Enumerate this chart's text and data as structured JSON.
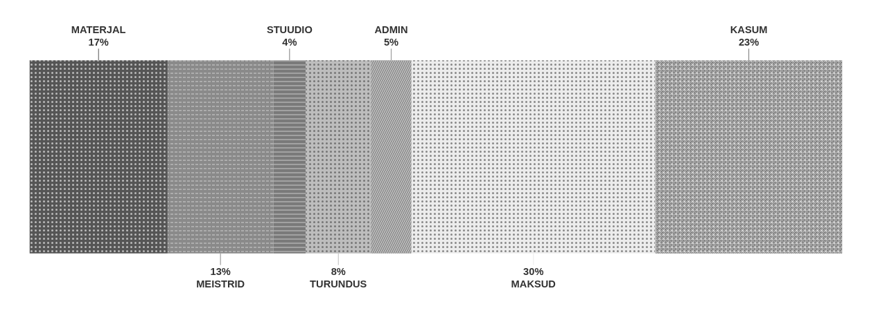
{
  "chart_data": {
    "type": "bar",
    "orientation": "horizontal",
    "stacked": true,
    "categories": [
      null
    ],
    "tick_labels": false,
    "xlim": [
      0,
      100
    ],
    "series": [
      {
        "name": "MATERJAL",
        "color": "#555555",
        "values": [
          17
        ],
        "value_labels": [
          "17%"
        ]
      },
      {
        "name": "MEISTRID",
        "color": "#8a8a8a",
        "values": [
          13
        ],
        "value_labels": [
          "13%"
        ]
      },
      {
        "name": "STUUDIO",
        "color": "#7a7a7a",
        "values": [
          4
        ],
        "value_labels": [
          "4%"
        ]
      },
      {
        "name": "TURUNDUS",
        "color": "#bdbdbd",
        "values": [
          8
        ],
        "value_labels": [
          "8%"
        ]
      },
      {
        "name": "ADMIN",
        "color": "#8f8f8f",
        "values": [
          5
        ],
        "value_labels": [
          "5%"
        ]
      },
      {
        "name": "MAKSUD",
        "color": "#ececec",
        "values": [
          30
        ],
        "value_labels": [
          "30%"
        ]
      },
      {
        "name": "KASUM",
        "color": "#777777",
        "values": [
          23
        ],
        "value_labels": [
          "23%"
        ]
      }
    ]
  }
}
